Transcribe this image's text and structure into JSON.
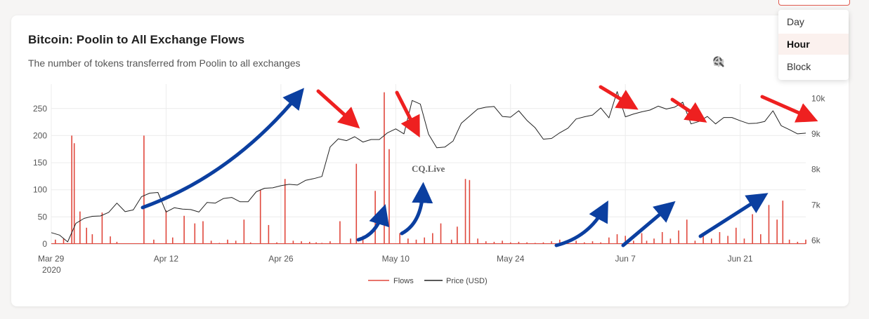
{
  "title": "Bitcoin: Poolin to All Exchange Flows",
  "subtitle": "The number of tokens transferred from Poolin to all exchanges",
  "watermark": "CQ.Live",
  "dropdown": {
    "items": [
      "Day",
      "Hour",
      "Block"
    ],
    "selected": "Hour"
  },
  "modebar": [
    "camera-icon",
    "zoom-icon",
    "pan-icon"
  ],
  "colors": {
    "flows": "#e0473c",
    "price": "#222222",
    "arrow_up": "#0b3fa0",
    "arrow_down": "#ee2020"
  },
  "chart_data": {
    "type": "line",
    "x_ticks": [
      "Mar 29",
      "Apr 12",
      "Apr 26",
      "May 10",
      "May 24",
      "Jun 7",
      "Jun 21"
    ],
    "x_year": "2020",
    "x_range": [
      0,
      92
    ],
    "y_left": {
      "ticks": [
        "0",
        "50",
        "100",
        "150",
        "200",
        "250"
      ],
      "range": [
        0,
        295
      ]
    },
    "y_right": {
      "ticks": [
        "6k",
        "7k",
        "8k",
        "9k",
        "10k"
      ],
      "range": [
        5900,
        10400
      ]
    },
    "legend": [
      "Flows",
      "Price (USD)"
    ],
    "series": [
      {
        "name": "Price (USD)",
        "axis": "right",
        "points": [
          [
            0,
            6220
          ],
          [
            1,
            6150
          ],
          [
            2,
            5960
          ],
          [
            3,
            6480
          ],
          [
            4,
            6620
          ],
          [
            5,
            6680
          ],
          [
            6,
            6690
          ],
          [
            7,
            6790
          ],
          [
            8,
            7050
          ],
          [
            9,
            6810
          ],
          [
            10,
            6860
          ],
          [
            11,
            7230
          ],
          [
            12,
            7330
          ],
          [
            13,
            7350
          ],
          [
            14,
            6800
          ],
          [
            15,
            6920
          ],
          [
            16,
            6880
          ],
          [
            17,
            6870
          ],
          [
            18,
            6800
          ],
          [
            19,
            7070
          ],
          [
            20,
            7050
          ],
          [
            21,
            7180
          ],
          [
            22,
            7210
          ],
          [
            23,
            7090
          ],
          [
            24,
            7090
          ],
          [
            25,
            7370
          ],
          [
            26,
            7470
          ],
          [
            27,
            7480
          ],
          [
            28,
            7540
          ],
          [
            29,
            7580
          ],
          [
            30,
            7560
          ],
          [
            31,
            7690
          ],
          [
            32,
            7740
          ],
          [
            33,
            7800
          ],
          [
            34,
            8630
          ],
          [
            35,
            8860
          ],
          [
            36,
            8810
          ],
          [
            37,
            8920
          ],
          [
            38,
            8770
          ],
          [
            39,
            8840
          ],
          [
            40,
            8840
          ],
          [
            41,
            9030
          ],
          [
            42,
            9140
          ],
          [
            43,
            9000
          ],
          [
            44,
            9940
          ],
          [
            45,
            9840
          ],
          [
            46,
            8990
          ],
          [
            47,
            8610
          ],
          [
            48,
            8630
          ],
          [
            49,
            8800
          ],
          [
            50,
            9300
          ],
          [
            51,
            9500
          ],
          [
            52,
            9700
          ],
          [
            53,
            9750
          ],
          [
            54,
            9770
          ],
          [
            55,
            9490
          ],
          [
            56,
            9470
          ],
          [
            57,
            9650
          ],
          [
            58,
            9380
          ],
          [
            59,
            9170
          ],
          [
            60,
            8850
          ],
          [
            61,
            8870
          ],
          [
            62,
            9030
          ],
          [
            63,
            9160
          ],
          [
            64,
            9420
          ],
          [
            65,
            9480
          ],
          [
            66,
            9530
          ],
          [
            67,
            9730
          ],
          [
            68,
            9450
          ],
          [
            69,
            10190
          ],
          [
            70,
            9480
          ],
          [
            71,
            9560
          ],
          [
            72,
            9620
          ],
          [
            73,
            9670
          ],
          [
            74,
            9780
          ],
          [
            75,
            9700
          ],
          [
            76,
            9750
          ],
          [
            77,
            9890
          ],
          [
            78,
            9280
          ],
          [
            79,
            9350
          ],
          [
            80,
            9490
          ],
          [
            81,
            9280
          ],
          [
            82,
            9460
          ],
          [
            83,
            9460
          ],
          [
            84,
            9370
          ],
          [
            85,
            9290
          ],
          [
            86,
            9300
          ],
          [
            87,
            9350
          ],
          [
            88,
            9650
          ],
          [
            89,
            9230
          ],
          [
            90,
            9120
          ],
          [
            91,
            9000
          ],
          [
            92,
            9020
          ]
        ]
      },
      {
        "name": "Flows",
        "axis": "left",
        "spikes": [
          [
            0.5,
            8
          ],
          [
            1.5,
            10
          ],
          [
            2.5,
            200
          ],
          [
            2.8,
            186
          ],
          [
            3.5,
            60
          ],
          [
            4.3,
            30
          ],
          [
            5,
            18
          ],
          [
            6.2,
            58
          ],
          [
            7.2,
            14
          ],
          [
            8,
            4
          ],
          [
            11.3,
            200
          ],
          [
            12.5,
            8
          ],
          [
            14,
            62
          ],
          [
            14.8,
            12
          ],
          [
            16.2,
            52
          ],
          [
            17.5,
            38
          ],
          [
            18.5,
            42
          ],
          [
            19.5,
            6
          ],
          [
            20.5,
            2
          ],
          [
            21.5,
            8
          ],
          [
            22.5,
            6
          ],
          [
            23.5,
            45
          ],
          [
            24.3,
            3
          ],
          [
            25.5,
            100
          ],
          [
            26.5,
            35
          ],
          [
            27.5,
            3
          ],
          [
            28.5,
            120
          ],
          [
            29.5,
            6
          ],
          [
            30.5,
            5
          ],
          [
            31.5,
            4
          ],
          [
            32.3,
            3
          ],
          [
            33,
            2
          ],
          [
            34,
            5
          ],
          [
            35.2,
            42
          ],
          [
            36.5,
            10
          ],
          [
            37.2,
            148
          ],
          [
            38,
            15
          ],
          [
            39.5,
            98
          ],
          [
            40.6,
            280
          ],
          [
            41.2,
            175
          ],
          [
            42.5,
            20
          ],
          [
            43.5,
            10
          ],
          [
            44.5,
            8
          ],
          [
            45.5,
            12
          ],
          [
            46.5,
            20
          ],
          [
            47.5,
            38
          ],
          [
            48.8,
            8
          ],
          [
            49.5,
            32
          ],
          [
            50.5,
            120
          ],
          [
            51,
            118
          ],
          [
            52,
            10
          ],
          [
            53,
            5
          ],
          [
            54,
            4
          ],
          [
            55,
            6
          ],
          [
            56,
            3
          ],
          [
            57,
            4
          ],
          [
            58,
            3
          ],
          [
            59,
            2
          ],
          [
            60,
            3
          ],
          [
            61,
            5
          ],
          [
            62,
            8
          ],
          [
            63,
            4
          ],
          [
            64,
            6
          ],
          [
            65,
            3
          ],
          [
            66,
            5
          ],
          [
            67,
            3
          ],
          [
            68,
            12
          ],
          [
            69,
            18
          ],
          [
            70,
            15
          ],
          [
            71,
            6
          ],
          [
            72,
            20
          ],
          [
            72.6,
            6
          ],
          [
            73.5,
            10
          ],
          [
            74.5,
            22
          ],
          [
            75.5,
            10
          ],
          [
            76.5,
            25
          ],
          [
            77.5,
            45
          ],
          [
            78.5,
            6
          ],
          [
            79.5,
            18
          ],
          [
            80.5,
            10
          ],
          [
            81.5,
            22
          ],
          [
            82.5,
            15
          ],
          [
            83.5,
            30
          ],
          [
            84.5,
            10
          ],
          [
            85.5,
            55
          ],
          [
            86.5,
            18
          ],
          [
            87.5,
            72
          ],
          [
            88.5,
            45
          ],
          [
            89.2,
            80
          ],
          [
            90,
            8
          ],
          [
            91,
            4
          ],
          [
            92,
            8
          ]
        ]
      }
    ]
  }
}
